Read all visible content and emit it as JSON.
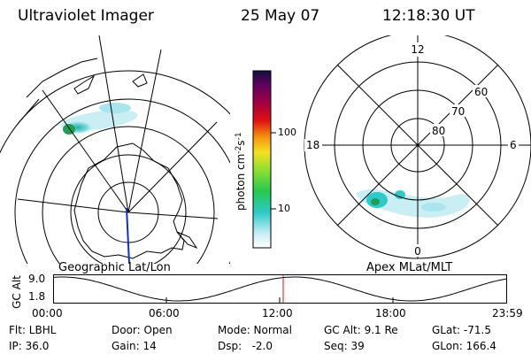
{
  "header": {
    "instrument": "Ultraviolet Imager",
    "date": "25 May 07",
    "time": "12:18:30 UT"
  },
  "colorbar": {
    "unit_prefix": "photon cm",
    "unit_exp1": "-2",
    "unit_mid": "s",
    "unit_exp2": "-1",
    "tick_high": "100",
    "tick_low": "10"
  },
  "left_map": {
    "label": "Geographic Lat/Lon"
  },
  "right_map": {
    "label": "Apex MLat/MLT",
    "mlt_12": "12",
    "mlt_18": "18",
    "mlt_6": "6",
    "mlt_0": "0",
    "lat_60": "60",
    "lat_70": "70",
    "lat_80": "80"
  },
  "alt_plot": {
    "ylabel": "GC Alt",
    "y_high": "9.0",
    "y_low": "1.8",
    "x_ticks": [
      "00:00",
      "06:00",
      "12:00",
      "18:00",
      "23:59"
    ],
    "marker_color": "#e01010"
  },
  "info": {
    "flt": "Flt: LBHL",
    "ip": "IP: 36.0",
    "door": "Door: Open",
    "gain": "Gain: 14",
    "mode": "Mode: Normal",
    "dsp": "Dsp:   -2.0",
    "gcalt": "GC Alt: 9.1 Re",
    "seq": "Seq: 39",
    "glat": "GLat: -71.5",
    "glon": "GLon: 166.4"
  }
}
